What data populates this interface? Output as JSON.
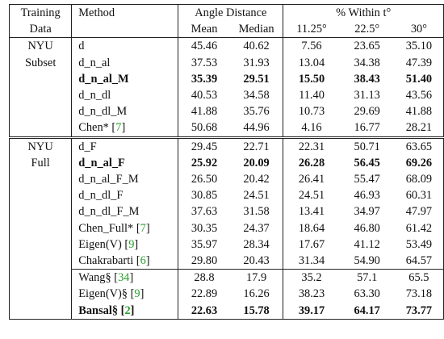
{
  "header": {
    "training_data_line1": "Training",
    "training_data_line2": "Data",
    "method": "Method",
    "angle_distance": "Angle Distance",
    "within": "% Within t°",
    "mean": "Mean",
    "median": "Median",
    "t1": "11.25°",
    "t2": "22.5°",
    "t3": "30°"
  },
  "groups": [
    {
      "label_line1": "NYU",
      "label_line2": "Subset",
      "rows": [
        {
          "method": "d",
          "ref": "",
          "bold": false,
          "values": [
            "45.46",
            "40.62",
            "7.56",
            "23.65",
            "35.10"
          ]
        },
        {
          "method": "d_n_al",
          "ref": "",
          "bold": false,
          "values": [
            "37.53",
            "31.93",
            "13.04",
            "34.38",
            "47.39"
          ]
        },
        {
          "method": "d_n_al_M",
          "ref": "",
          "bold": true,
          "values": [
            "35.39",
            "29.51",
            "15.50",
            "38.43",
            "51.40"
          ]
        },
        {
          "method": "d_n_dl",
          "ref": "",
          "bold": false,
          "values": [
            "40.53",
            "34.58",
            "11.40",
            "31.13",
            "43.56"
          ]
        },
        {
          "method": "d_n_dl_M",
          "ref": "",
          "bold": false,
          "values": [
            "41.88",
            "35.76",
            "10.73",
            "29.69",
            "41.88"
          ]
        },
        {
          "method": "Chen* [",
          "ref": "7",
          "bold": false,
          "values": [
            "50.68",
            "44.96",
            "4.16",
            "16.77",
            "28.21"
          ]
        }
      ]
    },
    {
      "label_line1": "NYU",
      "label_line2": "Full",
      "rows": [
        {
          "method": "d_F",
          "ref": "",
          "bold": false,
          "values": [
            "29.45",
            "22.71",
            "22.31",
            "50.71",
            "63.65"
          ]
        },
        {
          "method": "d_n_al_F",
          "ref": "",
          "bold": true,
          "values": [
            "25.92",
            "20.09",
            "26.28",
            "56.45",
            "69.26"
          ]
        },
        {
          "method": "d_n_al_F_M",
          "ref": "",
          "bold": false,
          "values": [
            "26.50",
            "20.42",
            "26.41",
            "55.47",
            "68.09"
          ]
        },
        {
          "method": "d_n_dl_F",
          "ref": "",
          "bold": false,
          "values": [
            "30.85",
            "24.51",
            "24.51",
            "46.93",
            "60.31"
          ]
        },
        {
          "method": "d_n_dl_F_M",
          "ref": "",
          "bold": false,
          "values": [
            "37.63",
            "31.58",
            "13.41",
            "34.97",
            "47.97"
          ]
        },
        {
          "method": "Chen_Full* [",
          "ref": "7",
          "bold": false,
          "values": [
            "30.35",
            "24.37",
            "18.64",
            "46.80",
            "61.42"
          ]
        },
        {
          "method": "Eigen(V) [",
          "ref": "9",
          "bold": false,
          "values": [
            "35.97",
            "28.34",
            "17.67",
            "41.12",
            "53.49"
          ]
        },
        {
          "method": "Chakrabarti [",
          "ref": "6",
          "bold": false,
          "values": [
            "29.80",
            "20.43",
            "31.34",
            "54.90",
            "64.57"
          ]
        },
        {
          "method": "Wang§ [",
          "ref": "34",
          "bold": false,
          "values": [
            "28.8",
            "17.9",
            "35.2",
            "57.1",
            "65.5"
          ]
        },
        {
          "method": "Eigen(V)§ [",
          "ref": "9",
          "bold": false,
          "values": [
            "22.89",
            "16.26",
            "38.23",
            "63.30",
            "73.18"
          ]
        },
        {
          "method": "Bansal§ [",
          "ref": "2",
          "bold": true,
          "values": [
            "22.63",
            "15.78",
            "39.17",
            "64.17",
            "73.77"
          ]
        }
      ]
    }
  ]
}
